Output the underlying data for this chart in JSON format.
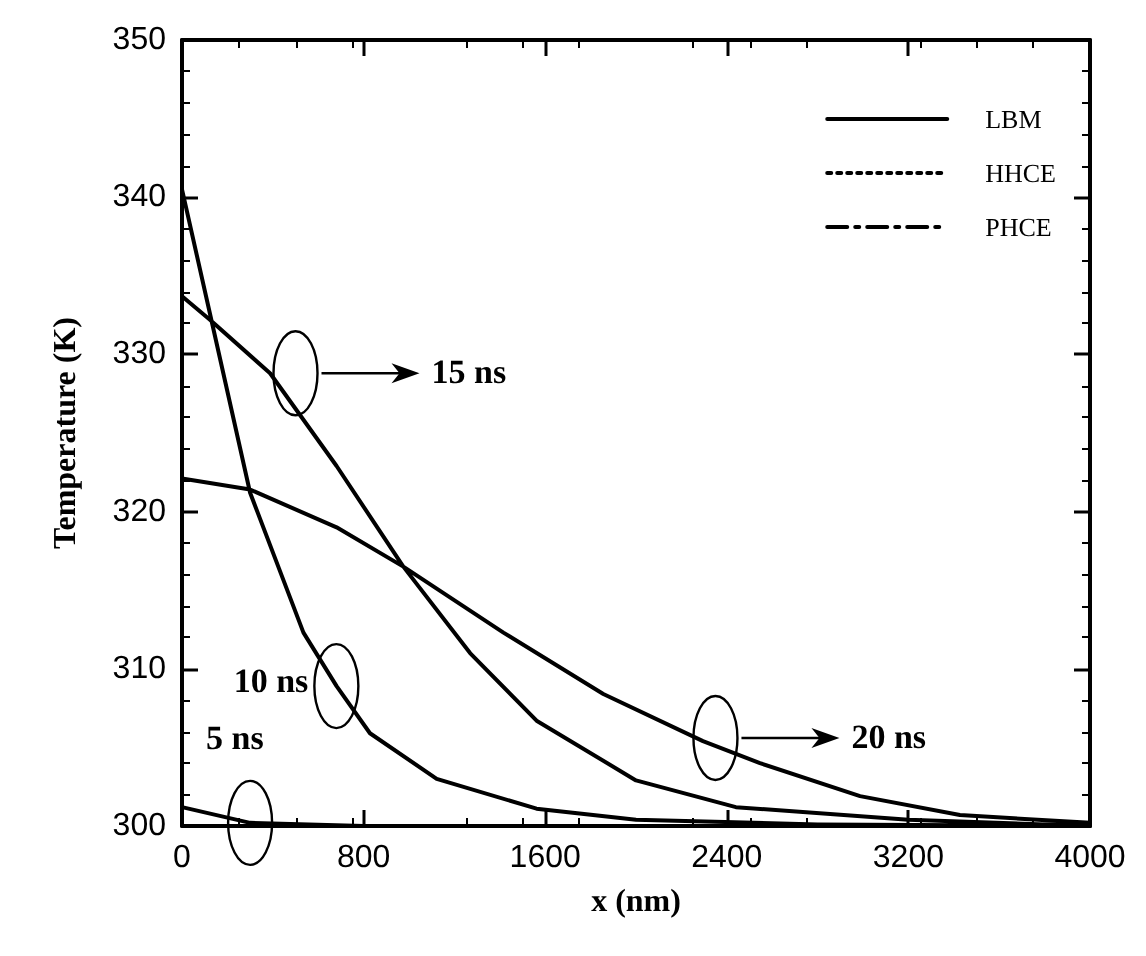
{
  "chart_data": {
    "type": "line",
    "xlabel": "x (nm)",
    "ylabel": "Temperature (K)",
    "xlim": [
      0,
      4000
    ],
    "xticks": [
      0,
      800,
      1600,
      2400,
      3200,
      4000
    ],
    "ylim": [
      300,
      350
    ],
    "yticks": [
      300,
      310,
      320,
      330,
      340,
      350
    ],
    "legend": "top right",
    "grid": false,
    "marker": "none",
    "series": [
      {
        "name": "LBM",
        "color": "#000000",
        "line_style": "solid",
        "x": [
          0,
          300,
          800,
          1500,
          4000,
          null,
          0,
          123,
          300,
          535,
          681,
          828,
          1122,
          1562,
          2000,
          2800,
          4000,
          null,
          0,
          123,
          388,
          681,
          975,
          1269,
          1562,
          2000,
          2440,
          3200,
          4000,
          null,
          0,
          300,
          681,
          975,
          1416,
          1856,
          2295,
          2546,
          2987,
          3427,
          4000
        ],
        "values": [
          301.2,
          300.2,
          300.0,
          300.0,
          300.0,
          null,
          340.5,
          332.6,
          321.2,
          312.3,
          308.9,
          305.9,
          303.0,
          301.1,
          300.4,
          300.1,
          300.0,
          null,
          333.7,
          332.2,
          328.8,
          322.9,
          316.5,
          311.0,
          306.7,
          302.9,
          301.2,
          300.4,
          300.0,
          null,
          322.1,
          321.4,
          319.0,
          316.5,
          312.3,
          308.4,
          305.4,
          304.0,
          301.9,
          300.7,
          300.2
        ]
      },
      {
        "name": "HHCE",
        "color": "#000000",
        "line_style": "dotted"
      },
      {
        "name": "PHCE",
        "color": "#000000",
        "line_style": "dashdot"
      }
    ],
    "annotations": [
      {
        "text": "5 ns",
        "x": 300,
        "y": 300.2
      },
      {
        "text": "10 ns",
        "x": 680,
        "y": 308.9
      },
      "15 ns",
      "20 ns"
    ]
  }
}
